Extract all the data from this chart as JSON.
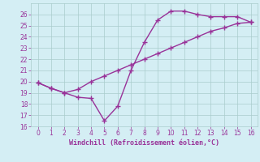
{
  "line1_x": [
    0,
    1,
    2,
    3,
    4,
    5,
    6,
    7,
    8,
    9,
    10,
    11,
    12,
    13,
    14,
    15,
    16
  ],
  "line1_y": [
    19.9,
    19.4,
    19.0,
    18.6,
    18.5,
    16.5,
    17.8,
    21.0,
    23.5,
    25.5,
    26.3,
    26.3,
    26.0,
    25.8,
    25.8,
    25.8,
    25.3
  ],
  "line2_x": [
    0,
    1,
    2,
    3,
    4,
    5,
    6,
    7,
    8,
    9,
    10,
    11,
    12,
    13,
    14,
    15,
    16
  ],
  "line2_y": [
    19.9,
    19.4,
    19.0,
    19.3,
    20.0,
    20.5,
    21.0,
    21.5,
    22.0,
    22.5,
    23.0,
    23.5,
    24.0,
    24.5,
    24.8,
    25.2,
    25.3
  ],
  "line_color": "#993399",
  "bg_color": "#d4eef4",
  "grid_color": "#aacccc",
  "xlabel": "Windchill (Refroidissement éolien,°C)",
  "xlabel_color": "#993399",
  "xlim": [
    -0.5,
    16.5
  ],
  "ylim": [
    16,
    27
  ],
  "yticks": [
    16,
    17,
    18,
    19,
    20,
    21,
    22,
    23,
    24,
    25,
    26
  ],
  "xticks": [
    0,
    1,
    2,
    3,
    4,
    5,
    6,
    7,
    8,
    9,
    10,
    11,
    12,
    13,
    14,
    15,
    16
  ],
  "tick_color": "#993399",
  "marker": "+",
  "markersize": 4,
  "linewidth": 1.0
}
